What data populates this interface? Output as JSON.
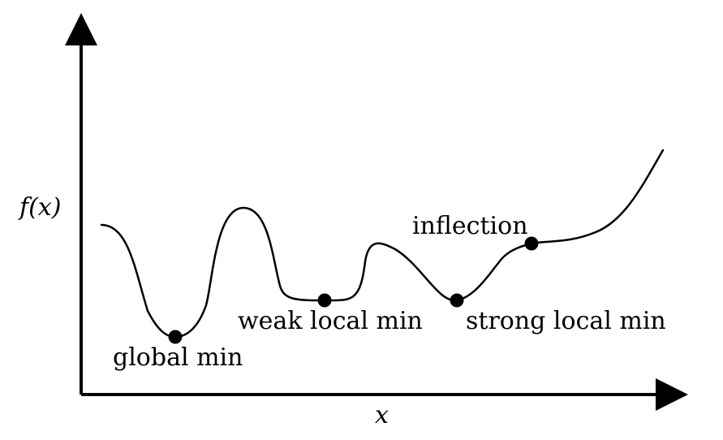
{
  "figure": {
    "y_axis_label": "f(x)",
    "x_axis_label": "x",
    "points": {
      "global_min": "global min",
      "weak_local_min": "weak local min",
      "strong_local_min": "strong local min",
      "inflection": "inflection"
    }
  }
}
